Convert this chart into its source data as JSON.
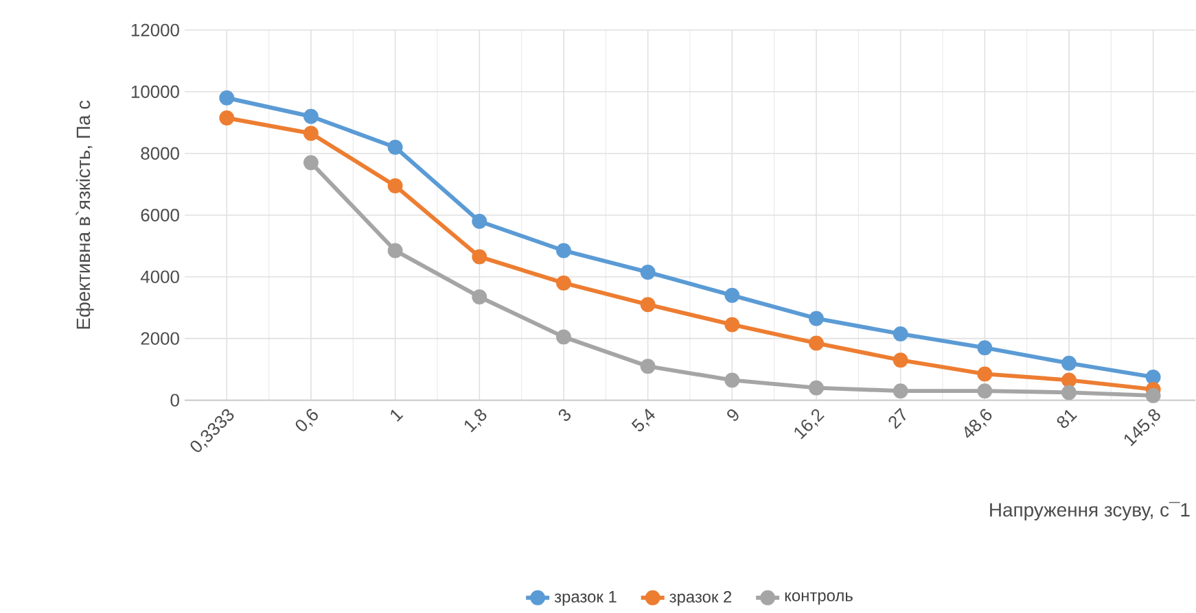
{
  "chart_data": {
    "type": "line",
    "xlabel": "Напруження зсуву, с¯1",
    "ylabel": "Ефективна в`язкість, Па с",
    "categories": [
      "0,3333",
      "0,6",
      "1",
      "1,8",
      "3",
      "5,4",
      "9",
      "16,2",
      "27",
      "48,6",
      "81",
      "145,8"
    ],
    "series": [
      {
        "name": "зразок 1",
        "color": "#5b9bd5",
        "values": [
          9800,
          9200,
          8200,
          5800,
          4850,
          4150,
          3400,
          2650,
          2150,
          1700,
          1200,
          750
        ]
      },
      {
        "name": "зразок 2",
        "color": "#ed7d31",
        "values": [
          9150,
          8650,
          6950,
          4650,
          3800,
          3100,
          2450,
          1850,
          1300,
          850,
          650,
          350
        ]
      },
      {
        "name": "контроль",
        "color": "#a5a5a5",
        "values": [
          null,
          7700,
          4850,
          3350,
          2050,
          1100,
          650,
          400,
          300,
          300,
          250,
          150
        ]
      }
    ],
    "ylim": [
      0,
      12000
    ],
    "yticks": [
      0,
      2000,
      4000,
      6000,
      8000,
      10000,
      12000
    ],
    "grid": true,
    "legend": "bottom",
    "marker": "circle",
    "line_style": "solid"
  }
}
